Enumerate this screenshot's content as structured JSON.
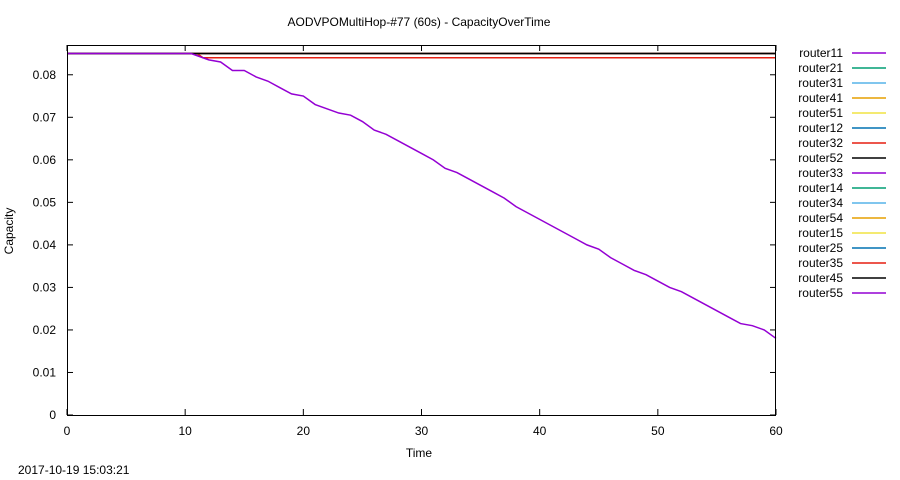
{
  "chart_data": {
    "type": "line",
    "title": "AODVPOMultiHop-#77 (60s) - CapacityOverTime",
    "xlabel": "Time",
    "ylabel": "Capacity",
    "xlim": [
      0,
      60
    ],
    "ylim": [
      0,
      0.087
    ],
    "xticks": [
      0,
      10,
      20,
      30,
      40,
      50,
      60
    ],
    "yticks": [
      0,
      0.01,
      0.02,
      0.03,
      0.04,
      0.05,
      0.06,
      0.07,
      0.08
    ],
    "ytick_labels": [
      "0",
      "0.01",
      "0.02",
      "0.03",
      "0.04",
      "0.05",
      "0.06",
      "0.07",
      "0.08"
    ],
    "legend_position": "outside-right",
    "grid": false,
    "series": [
      {
        "name": "router11",
        "color": "#9400d3",
        "x": [
          0,
          60
        ],
        "y": [
          0.085,
          0.085
        ]
      },
      {
        "name": "router21",
        "color": "#009e73",
        "x": [
          0,
          60
        ],
        "y": [
          0.085,
          0.085
        ]
      },
      {
        "name": "router31",
        "color": "#56b4e9",
        "x": [
          0,
          60
        ],
        "y": [
          0.085,
          0.085
        ]
      },
      {
        "name": "router41",
        "color": "#e69f00",
        "x": [
          0,
          11,
          11.5,
          60
        ],
        "y": [
          0.085,
          0.085,
          0.084,
          0.084
        ]
      },
      {
        "name": "router51",
        "color": "#f0e442",
        "x": [
          0,
          60
        ],
        "y": [
          0.085,
          0.085
        ]
      },
      {
        "name": "router12",
        "color": "#0072b2",
        "x": [
          0,
          60
        ],
        "y": [
          0.085,
          0.085
        ]
      },
      {
        "name": "router32",
        "color": "#e51e10",
        "x": [
          0,
          11,
          11.5,
          51.5,
          52.3,
          60
        ],
        "y": [
          0.085,
          0.085,
          0.084,
          0.084,
          0.084,
          0.084
        ]
      },
      {
        "name": "router52",
        "color": "#000000",
        "x": [
          0,
          60
        ],
        "y": [
          0.085,
          0.085
        ]
      },
      {
        "name": "router33",
        "color": "#9400d3",
        "x": [
          0,
          60
        ],
        "y": [
          0.085,
          0.085
        ]
      },
      {
        "name": "router14",
        "color": "#009e73",
        "x": [
          0,
          60
        ],
        "y": [
          0.085,
          0.085
        ]
      },
      {
        "name": "router34",
        "color": "#56b4e9",
        "x": [
          0,
          12,
          13,
          60
        ],
        "y": [
          0.085,
          0.085,
          0.085,
          0.085
        ]
      },
      {
        "name": "router54",
        "color": "#e69f00",
        "x": [
          0,
          60
        ],
        "y": [
          0.085,
          0.085
        ]
      },
      {
        "name": "router15",
        "color": "#f0e442",
        "x": [
          0,
          60
        ],
        "y": [
          0.085,
          0.085
        ]
      },
      {
        "name": "router25",
        "color": "#0072b2",
        "x": [
          0,
          60
        ],
        "y": [
          0.085,
          0.085
        ]
      },
      {
        "name": "router35",
        "color": "#e51e10",
        "x": [
          0,
          60
        ],
        "y": [
          0.085,
          0.085
        ]
      },
      {
        "name": "router45",
        "color": "#000000",
        "x": [
          0,
          60
        ],
        "y": [
          0.085,
          0.085
        ]
      },
      {
        "name": "router55",
        "color": "#9400d3",
        "x": [
          0,
          10.5,
          11,
          12,
          13,
          14,
          15,
          16,
          17,
          18,
          19,
          20,
          21,
          22,
          23,
          24,
          25,
          26,
          27,
          28,
          29,
          30,
          31,
          32,
          33,
          34,
          35,
          36,
          37,
          38,
          39,
          40,
          41,
          42,
          43,
          44,
          45,
          46,
          47,
          48,
          49,
          50,
          51,
          52,
          53,
          54,
          55,
          56,
          57,
          58,
          59,
          60
        ],
        "y": [
          0.085,
          0.085,
          0.0845,
          0.0835,
          0.083,
          0.081,
          0.081,
          0.0795,
          0.0785,
          0.077,
          0.0755,
          0.075,
          0.073,
          0.072,
          0.071,
          0.0705,
          0.069,
          0.067,
          0.066,
          0.0645,
          0.063,
          0.0615,
          0.06,
          0.058,
          0.057,
          0.0555,
          0.054,
          0.0525,
          0.051,
          0.049,
          0.0475,
          0.046,
          0.0445,
          0.043,
          0.0415,
          0.04,
          0.039,
          0.037,
          0.0355,
          0.034,
          0.033,
          0.0315,
          0.03,
          0.029,
          0.0275,
          0.026,
          0.0245,
          0.023,
          0.0215,
          0.021,
          0.02,
          0.018
        ]
      }
    ]
  },
  "footer": {
    "timestamp": "2017-10-19 15:03:21"
  }
}
